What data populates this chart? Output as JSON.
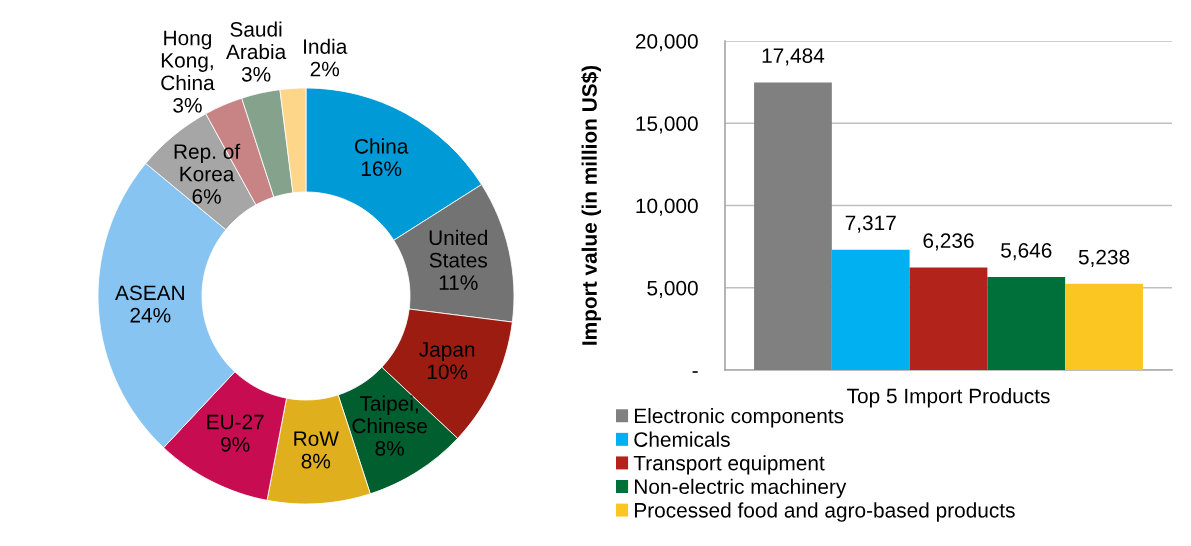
{
  "chart_data": [
    {
      "type": "donut",
      "categories": [
        "China",
        "United\nStates",
        "Japan",
        "Taipei,\nChinese",
        "RoW",
        "EU-27",
        "ASEAN",
        "Rep. of\nKorea",
        "Hong\nKong,\nChina",
        "Saudi\nArabia",
        "India"
      ],
      "values": [
        16,
        11,
        10,
        8,
        8,
        9,
        24,
        6,
        3,
        3,
        2
      ],
      "value_labels": [
        "16%",
        "11%",
        "10%",
        "8%",
        "8%",
        "9%",
        "24%",
        "6%",
        "3%",
        "3%",
        "2%"
      ],
      "colors": [
        "#009ad6",
        "#737373",
        "#9c1c12",
        "#005e2f",
        "#dfaf1e",
        "#c80c52",
        "#87c4f1",
        "#a6a6a6",
        "#c88484",
        "#84a28c",
        "#fdd68a"
      ]
    },
    {
      "type": "bar",
      "categories": [
        "Top 5 Import Products"
      ],
      "ylabel": "Import value (in million US$)",
      "series": [
        {
          "name": "Electronic components",
          "color": "#808080",
          "values": [
            17484
          ],
          "value_labels": [
            "17,484"
          ]
        },
        {
          "name": "Chemicals",
          "color": "#00b0f0",
          "values": [
            7317
          ],
          "value_labels": [
            "7,317"
          ]
        },
        {
          "name": "Transport equipment",
          "color": "#b2241b",
          "values": [
            6236
          ],
          "value_labels": [
            "6,236"
          ]
        },
        {
          "name": "Non-electric machinery",
          "color": "#00703a",
          "values": [
            5646
          ],
          "value_labels": [
            "5,646"
          ]
        },
        {
          "name": "Processed food and agro-based products",
          "color": "#fbc522",
          "values": [
            5238
          ],
          "value_labels": [
            "5,238"
          ]
        }
      ],
      "ylim": [
        0,
        20000
      ],
      "yticks": [
        {
          "value": 0,
          "label": "-"
        },
        {
          "value": 5000,
          "label": "5,000"
        },
        {
          "value": 10000,
          "label": "10,000"
        },
        {
          "value": 15000,
          "label": "15,000"
        },
        {
          "value": 20000,
          "label": "20,000"
        }
      ],
      "grid": "y",
      "legend": "bottom"
    }
  ]
}
